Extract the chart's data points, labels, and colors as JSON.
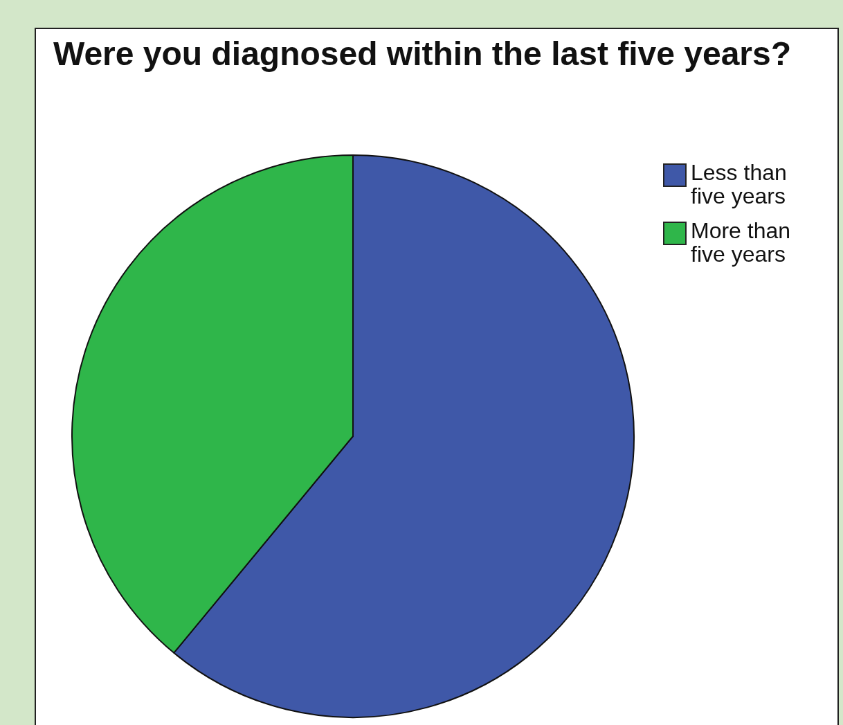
{
  "chart_data": {
    "type": "pie",
    "title": "Were you diagnosed within the last five years?",
    "categories": [
      "Less than five years",
      "More than five years"
    ],
    "values": [
      61,
      39
    ],
    "colors": [
      "#3f58a8",
      "#2fb64a"
    ],
    "legend": "top right"
  }
}
